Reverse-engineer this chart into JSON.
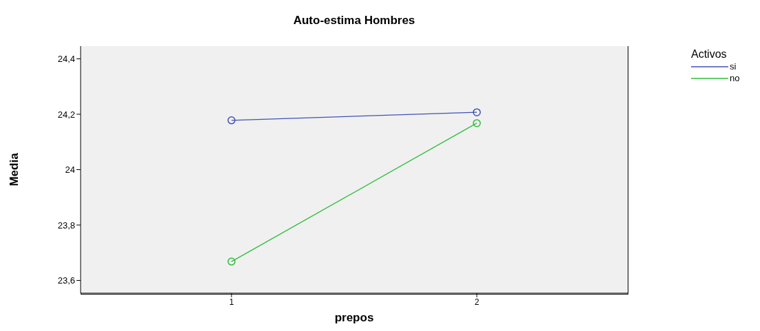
{
  "chart_data": {
    "type": "line",
    "title": "Auto-estima Hombres",
    "xlabel": "prepos",
    "ylabel": "Media",
    "legend_title": "Activos",
    "legend": "top right",
    "marker": "circle",
    "line_style": "solid",
    "grid": false,
    "x": [
      1,
      2
    ],
    "xlim": [
      0.385,
      2.615
    ],
    "xticks": [
      1,
      2
    ],
    "ylim": [
      23.554,
      24.446
    ],
    "yticks": [
      {
        "value": 23.6,
        "label": "23,6"
      },
      {
        "value": 23.8,
        "label": "23,8"
      },
      {
        "value": 24,
        "label": "24"
      },
      {
        "value": 24.2,
        "label": "24,2"
      },
      {
        "value": 24.4,
        "label": "24,4"
      }
    ],
    "series": [
      {
        "name": "si",
        "color": "#3f51b5",
        "values": [
          24.178,
          24.207
        ]
      },
      {
        "name": "no",
        "color": "#2ebd3b",
        "values": [
          23.668,
          24.168
        ]
      }
    ]
  }
}
